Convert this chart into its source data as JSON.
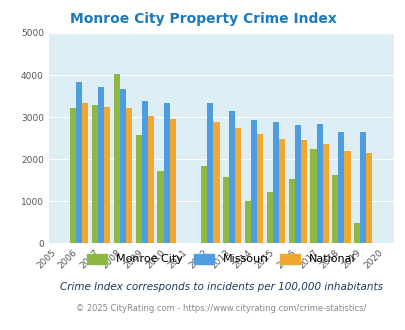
{
  "title": "Monroe City Property Crime Index",
  "years": [
    2005,
    2006,
    2007,
    2008,
    2009,
    2010,
    2011,
    2012,
    2013,
    2014,
    2015,
    2016,
    2017,
    2018,
    2019,
    2020
  ],
  "monroe_city": [
    null,
    3220,
    3280,
    4020,
    2580,
    1720,
    null,
    1840,
    1570,
    1010,
    1210,
    1530,
    2240,
    1630,
    490,
    null
  ],
  "missouri": [
    null,
    3840,
    3720,
    3660,
    3380,
    3340,
    null,
    3330,
    3150,
    2940,
    2880,
    2800,
    2830,
    2640,
    2640,
    null
  ],
  "national": [
    null,
    3340,
    3240,
    3210,
    3020,
    2950,
    null,
    2880,
    2730,
    2600,
    2490,
    2460,
    2360,
    2200,
    2140,
    null
  ],
  "bar_width": 0.28,
  "colors": {
    "monroe_city": "#8db843",
    "missouri": "#4d9de0",
    "national": "#f0a830"
  },
  "ylim": [
    0,
    5000
  ],
  "yticks": [
    0,
    1000,
    2000,
    3000,
    4000,
    5000
  ],
  "bg_color": "#ddeef5",
  "grid_color": "#ffffff",
  "title_color": "#1a7abf",
  "subtitle": "Crime Index corresponds to incidents per 100,000 inhabitants",
  "footer": "© 2025 CityRating.com - https://www.cityrating.com/crime-statistics/",
  "legend_labels": [
    "Monroe City",
    "Missouri",
    "National"
  ],
  "subtitle_color": "#1a3a5c",
  "footer_color": "#888888"
}
